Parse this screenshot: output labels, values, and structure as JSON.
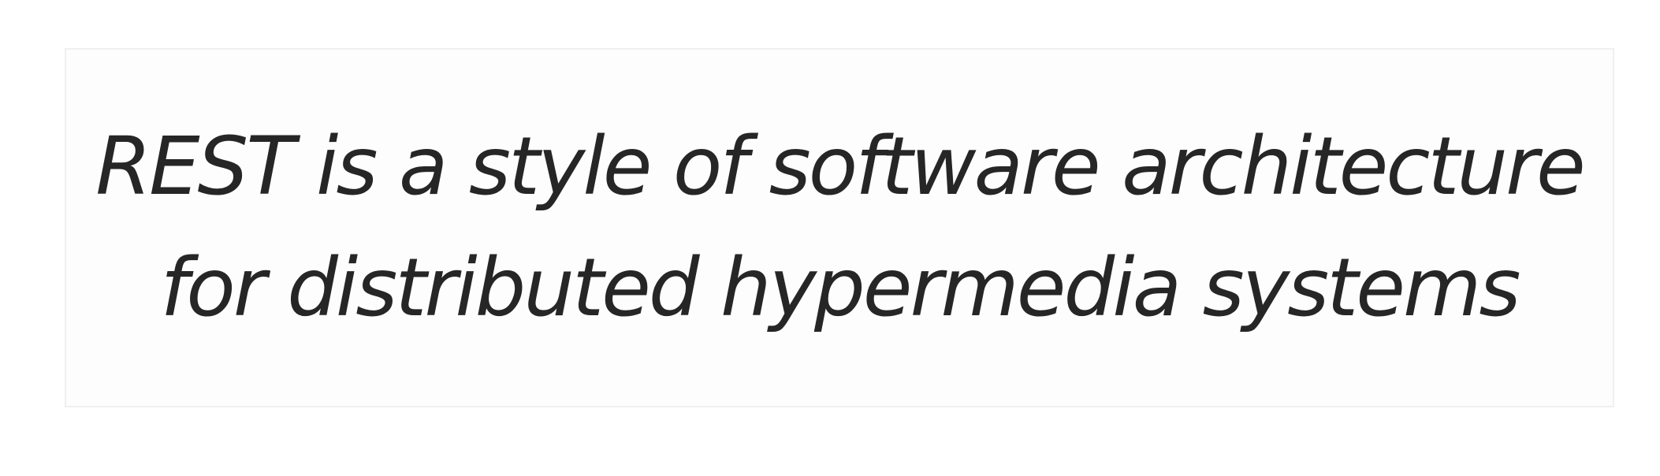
{
  "quote": {
    "lines": [
      "REST is a style of software architecture",
      "for distributed hypermedia systems"
    ]
  },
  "colors": {
    "text": "#262626",
    "card_background": "#fdfdfd",
    "card_border": "#f0f0f0"
  }
}
